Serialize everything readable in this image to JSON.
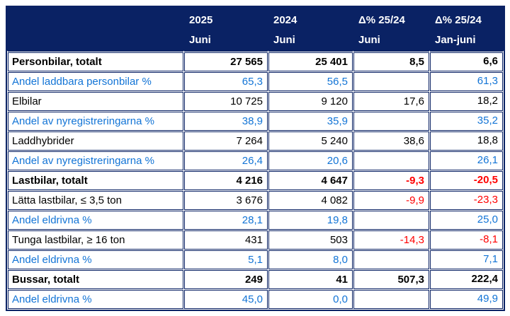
{
  "colors": {
    "header_bg": "#0a2264",
    "border": "#0a2264",
    "share_text": "#1274d6",
    "negative_text": "#ff0000",
    "text": "#000000",
    "background": "#ffffff"
  },
  "chart_data": {
    "type": "table",
    "header": {
      "row_label_column": "",
      "columns": [
        {
          "line1": "2025",
          "line2": "Juni"
        },
        {
          "line1": "2024",
          "line2": "Juni"
        },
        {
          "line1": "Δ% 25/24",
          "line2": "Juni"
        },
        {
          "line1": "Δ% 25/24",
          "line2": "Jan-juni"
        }
      ]
    },
    "rows": [
      {
        "label": "Personbilar, totalt",
        "style": "total",
        "values": [
          "27 565",
          "25 401",
          "8,5",
          "6,6"
        ]
      },
      {
        "label": "Andel laddbara personbilar %",
        "style": "share",
        "values": [
          "65,3",
          "56,5",
          "",
          "61,3"
        ]
      },
      {
        "label": "Elbilar",
        "style": "normal",
        "values": [
          "10 725",
          "9 120",
          "17,6",
          "18,2"
        ]
      },
      {
        "label": "Andel av nyregistreringarna %",
        "style": "share",
        "values": [
          "38,9",
          "35,9",
          "",
          "35,2"
        ]
      },
      {
        "label": "Laddhybrider",
        "style": "normal",
        "values": [
          "7 264",
          "5 240",
          "38,6",
          "18,8"
        ]
      },
      {
        "label": "Andel av nyregistreringarna %",
        "style": "share",
        "values": [
          "26,4",
          "20,6",
          "",
          "26,1"
        ]
      },
      {
        "label": "Lastbilar, totalt",
        "style": "total",
        "values": [
          "4 216",
          "4 647",
          "-9,3",
          "-20,5"
        ]
      },
      {
        "label": "Lätta lastbilar, ≤ 3,5 ton",
        "style": "normal",
        "values": [
          "3 676",
          "4 082",
          "-9,9",
          "-23,3"
        ]
      },
      {
        "label": "Andel eldrivna %",
        "style": "share",
        "values": [
          "28,1",
          "19,8",
          "",
          "25,0"
        ]
      },
      {
        "label": "Tunga lastbilar, ≥ 16 ton",
        "style": "normal",
        "values": [
          "431",
          "503",
          "-14,3",
          "-8,1"
        ]
      },
      {
        "label": "Andel eldrivna %",
        "style": "share",
        "values": [
          "5,1",
          "8,0",
          "",
          "7,1"
        ]
      },
      {
        "label": "Bussar, totalt",
        "style": "total",
        "values": [
          "249",
          "41",
          "507,3",
          "222,4"
        ]
      },
      {
        "label": "Andel eldrivna %",
        "style": "share",
        "values": [
          "45,0",
          "0,0",
          "",
          "49,9"
        ]
      }
    ]
  }
}
